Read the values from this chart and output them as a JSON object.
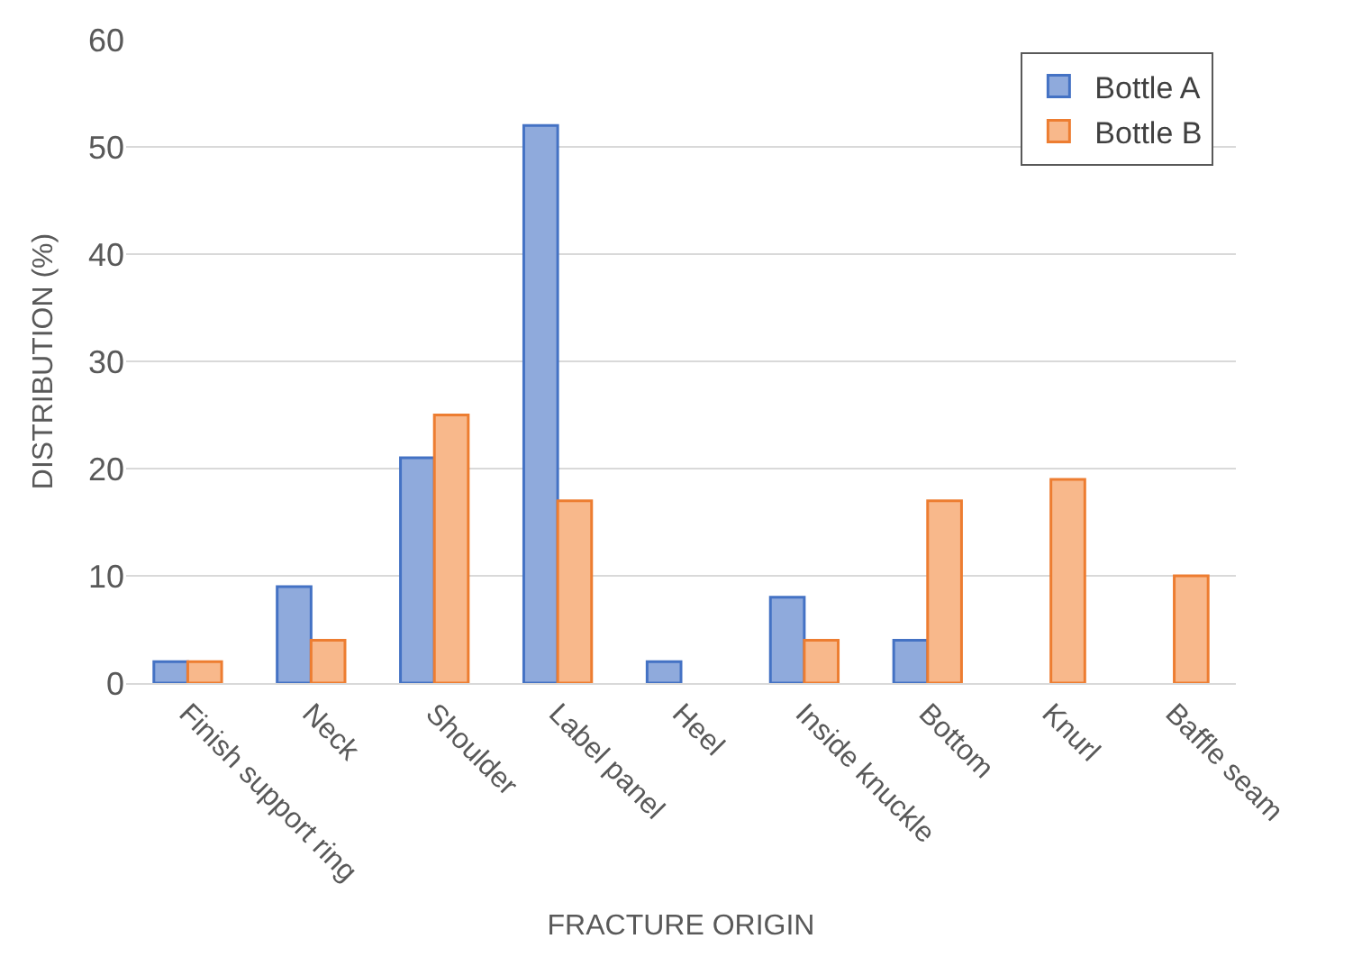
{
  "chart_data": {
    "type": "bar",
    "xlabel": "FRACTURE ORIGIN",
    "ylabel": "DISTRIBUTION (%)",
    "categories": [
      "Finish support ring",
      "Neck",
      "Shoulder",
      "Label panel",
      "Heel",
      "Inside knuckle",
      "Bottom",
      "Knurl",
      "Baffle seam"
    ],
    "series": [
      {
        "name": "Bottle A",
        "color": "#8faadc",
        "values": [
          2,
          9,
          21,
          52,
          2,
          8,
          4,
          null,
          null
        ]
      },
      {
        "name": "Bottle B",
        "color": "#f8b88b",
        "values": [
          2,
          4,
          25,
          17,
          null,
          4,
          17,
          19,
          10
        ]
      }
    ],
    "ylim": [
      0,
      60
    ],
    "yticks": [
      0,
      10,
      20,
      30,
      40,
      50,
      60
    ],
    "grid": "y",
    "legend": "top right"
  }
}
